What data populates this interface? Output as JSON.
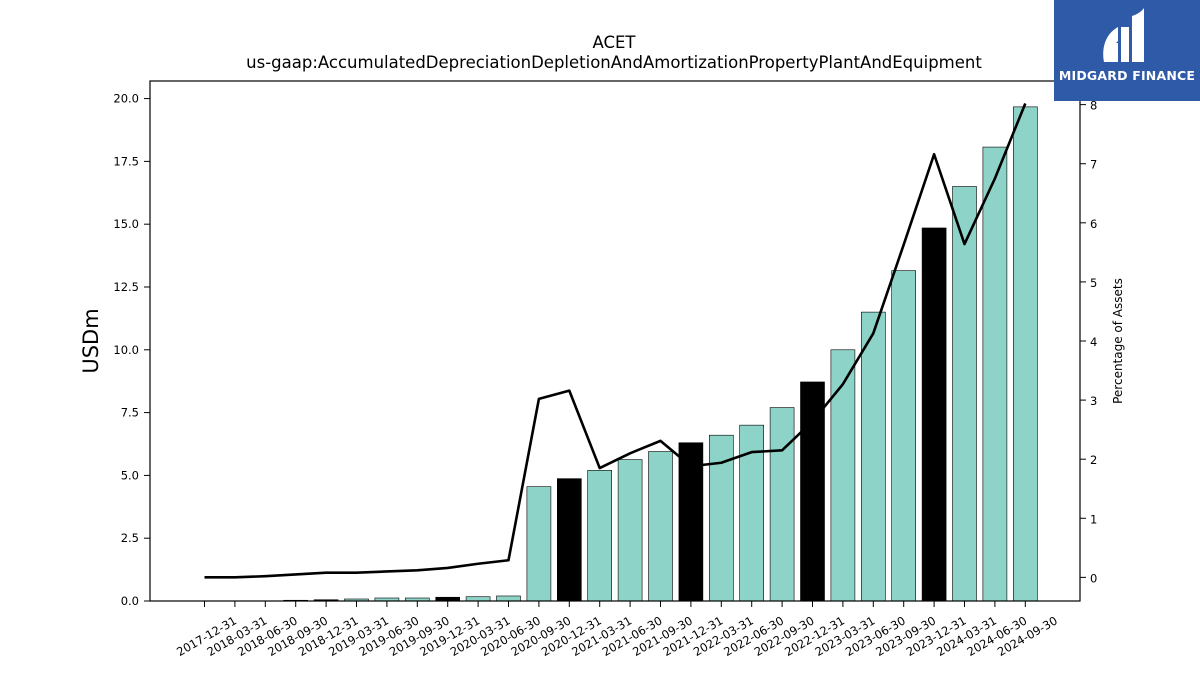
{
  "brand": {
    "name": "MIDGARD FINANCE",
    "colors": {
      "background": "#2f5aa8",
      "text": "#ffffff"
    }
  },
  "chart_data": {
    "type": "bar",
    "title": "ACET",
    "subtitle": "us-gaap:AccumulatedDepreciationDepletionAndAmortizationPropertyPlantAndEquipment",
    "ylabel": "USDm",
    "y2label": "Percentage of Assets",
    "ylim": [
      0,
      20.7
    ],
    "y2lim": [
      -0.4,
      8.4
    ],
    "yticks": [
      "0.0",
      "2.5",
      "5.0",
      "7.5",
      "10.0",
      "12.5",
      "15.0",
      "17.5",
      "20.0"
    ],
    "y2ticks": [
      "0",
      "1",
      "2",
      "3",
      "4",
      "5",
      "6",
      "7",
      "8"
    ],
    "grid": false,
    "colors": {
      "bar": "#8dd3c7",
      "year_end_bar": "#000000",
      "line": "#000000",
      "bar_edge": "#000000"
    },
    "categories": [
      "2017-12-31",
      "2018-03-31",
      "2018-06-30",
      "2018-09-30",
      "2018-12-31",
      "2019-03-31",
      "2019-06-30",
      "2019-09-30",
      "2019-12-31",
      "2020-03-31",
      "2020-06-30",
      "2020-09-30",
      "2020-12-31",
      "2021-03-31",
      "2021-06-30",
      "2021-09-30",
      "2021-12-31",
      "2022-03-31",
      "2022-06-30",
      "2022-09-30",
      "2022-12-31",
      "2023-03-31",
      "2023-06-30",
      "2023-09-30",
      "2023-12-31",
      "2024-03-31",
      "2024-06-30",
      "2024-09-30"
    ],
    "series": [
      {
        "type": "bar",
        "axis": "left",
        "values": [
          0.0,
          0.0,
          0.0,
          0.03,
          0.05,
          0.08,
          0.12,
          0.12,
          0.15,
          0.17,
          0.2,
          4.55,
          4.87,
          5.2,
          5.63,
          5.95,
          6.3,
          6.6,
          7.0,
          7.7,
          8.72,
          10.0,
          11.5,
          13.15,
          14.85,
          16.5,
          18.07,
          19.67
        ],
        "year_end": [
          true,
          false,
          false,
          false,
          true,
          false,
          false,
          false,
          true,
          false,
          false,
          false,
          true,
          false,
          false,
          false,
          true,
          false,
          false,
          false,
          true,
          false,
          false,
          false,
          true,
          false,
          false,
          false
        ]
      },
      {
        "type": "line",
        "axis": "right",
        "values": [
          0.0,
          0.0,
          0.02,
          0.05,
          0.08,
          0.08,
          0.1,
          0.12,
          0.16,
          0.23,
          0.29,
          3.02,
          3.16,
          1.85,
          2.1,
          2.31,
          1.88,
          1.94,
          2.12,
          2.15,
          2.64,
          3.27,
          4.13,
          5.63,
          7.16,
          5.64,
          6.75,
          8.02
        ]
      }
    ]
  }
}
